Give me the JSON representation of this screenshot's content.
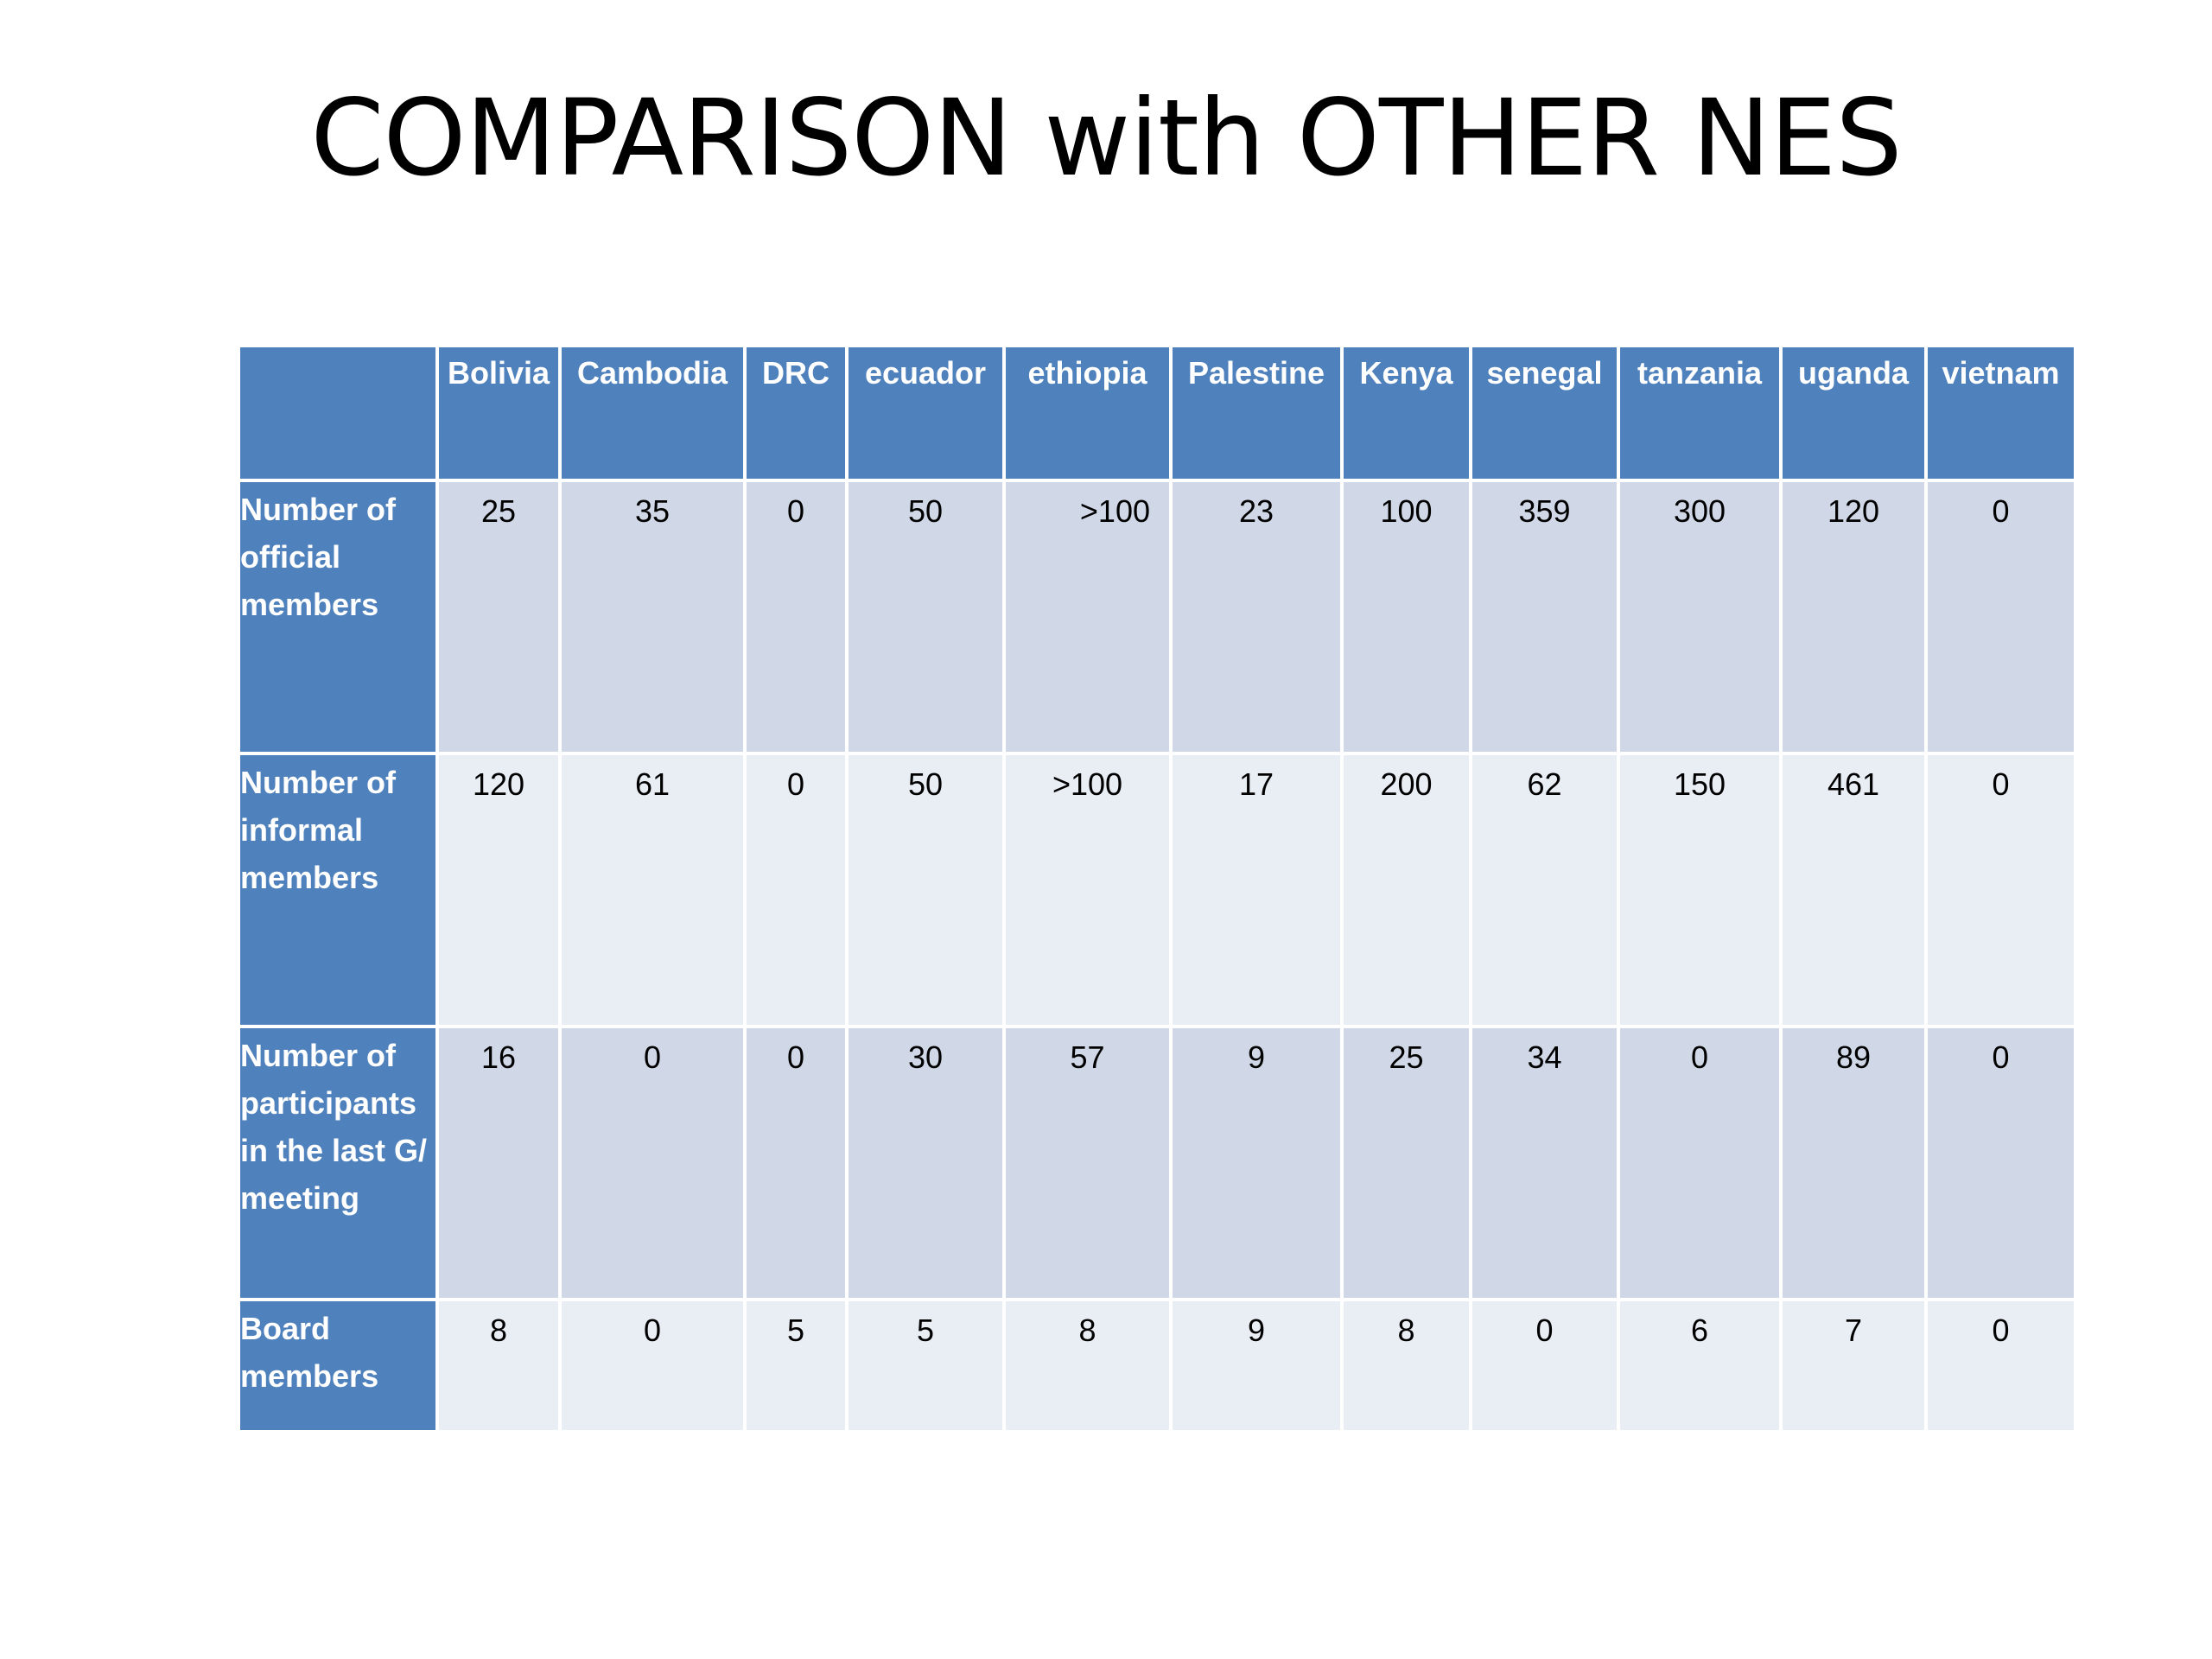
{
  "slide": {
    "title": "COMPARISON with OTHER NES"
  },
  "colors": {
    "header_blue": "#4f81bd",
    "row_dark": "#d0d8e8",
    "row_light": "#e9edf4"
  },
  "table": {
    "columns": [
      "Bolivia",
      "Cambodia",
      "DRC",
      "ecuador",
      "ethiopia",
      "Palestine",
      "Kenya",
      "senegal",
      "tanzania",
      "uganda",
      "vietnam"
    ],
    "rows": [
      {
        "label": "Number of official members",
        "values": [
          "25",
          "35",
          "0",
          "50",
          ">100",
          "23",
          "100",
          "359",
          "300",
          "120",
          "0"
        ]
      },
      {
        "label": "Number of informal members",
        "values": [
          "120",
          "61",
          "0",
          "50",
          ">100",
          "17",
          "200",
          "62",
          "150",
          "461",
          "0"
        ]
      },
      {
        "label": "Number of participants in the last G/ meeting",
        "values": [
          "16",
          "0",
          "0",
          "30",
          "57",
          "9",
          "25",
          "34",
          "0",
          "89",
          "0"
        ]
      },
      {
        "label": "Board members",
        "values": [
          "8",
          "0",
          "5",
          "5",
          "8",
          "9",
          "8",
          "0",
          "6",
          "7",
          "0"
        ]
      }
    ]
  }
}
